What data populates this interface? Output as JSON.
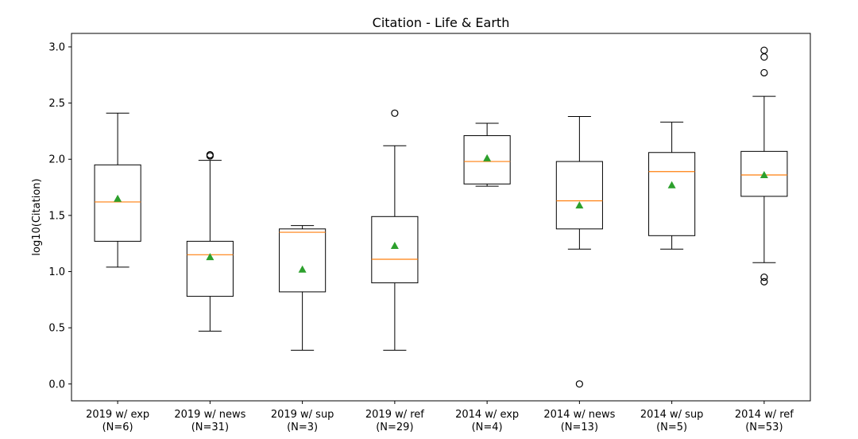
{
  "chart_data": {
    "type": "box",
    "title": "Citation - Life & Earth",
    "xlabel": "",
    "ylabel": "log10(Citation)",
    "ylim": [
      -0.15,
      3.12
    ],
    "yticks": [
      "0.0",
      "0.5",
      "1.0",
      "1.5",
      "2.0",
      "2.5",
      "3.0"
    ],
    "grid": false,
    "colors": {
      "median": "#ff7f0e",
      "mean": "#2ca02c",
      "box": "#000000"
    },
    "categories": [
      {
        "label": "2019 w/ exp",
        "n_label": "(N=6)"
      },
      {
        "label": "2019 w/ news",
        "n_label": "(N=31)"
      },
      {
        "label": "2019 w/ sup",
        "n_label": "(N=3)"
      },
      {
        "label": "2019 w/ ref",
        "n_label": "(N=29)"
      },
      {
        "label": "2014 w/ exp",
        "n_label": "(N=4)"
      },
      {
        "label": "2014 w/ news",
        "n_label": "(N=13)"
      },
      {
        "label": "2014 w/ sup",
        "n_label": "(N=5)"
      },
      {
        "label": "2014 w/ ref",
        "n_label": "(N=53)"
      }
    ],
    "boxes": [
      {
        "whisker_low": 1.04,
        "q1": 1.27,
        "median": 1.62,
        "q3": 1.95,
        "whisker_high": 2.41,
        "mean": 1.65,
        "outliers": []
      },
      {
        "whisker_low": 0.47,
        "q1": 0.78,
        "median": 1.15,
        "q3": 1.27,
        "whisker_high": 1.99,
        "mean": 1.13,
        "outliers": [
          2.03,
          2.04
        ]
      },
      {
        "whisker_low": 0.3,
        "q1": 0.82,
        "median": 1.35,
        "q3": 1.38,
        "whisker_high": 1.41,
        "mean": 1.02,
        "outliers": []
      },
      {
        "whisker_low": 0.3,
        "q1": 0.9,
        "median": 1.11,
        "q3": 1.49,
        "whisker_high": 2.12,
        "mean": 1.23,
        "outliers": [
          2.41
        ]
      },
      {
        "whisker_low": 1.76,
        "q1": 1.78,
        "median": 1.98,
        "q3": 2.21,
        "whisker_high": 2.32,
        "mean": 2.01,
        "outliers": []
      },
      {
        "whisker_low": 1.2,
        "q1": 1.38,
        "median": 1.63,
        "q3": 1.98,
        "whisker_high": 2.38,
        "mean": 1.59,
        "outliers": [
          0.0
        ]
      },
      {
        "whisker_low": 1.2,
        "q1": 1.32,
        "median": 1.89,
        "q3": 2.06,
        "whisker_high": 2.33,
        "mean": 1.77,
        "outliers": []
      },
      {
        "whisker_low": 1.08,
        "q1": 1.67,
        "median": 1.86,
        "q3": 2.07,
        "whisker_high": 2.56,
        "mean": 1.86,
        "outliers": [
          0.91,
          0.95,
          2.77,
          2.91,
          2.97
        ]
      }
    ]
  }
}
